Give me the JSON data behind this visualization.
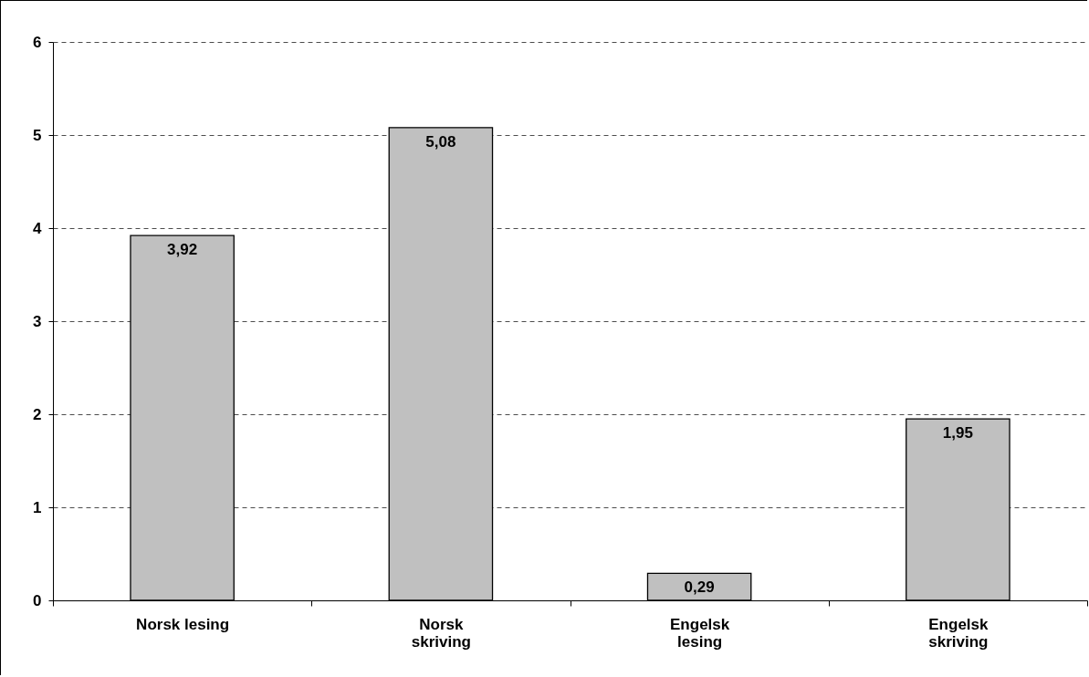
{
  "chart_data": {
    "type": "bar",
    "categories": [
      "Norsk lesing",
      "Norsk skriving",
      "Engelsk lesing",
      "Engelsk skriving"
    ],
    "values": [
      3.92,
      5.08,
      0.29,
      1.95
    ],
    "value_labels": [
      "3,92",
      "5,08",
      "0,29",
      "1,95"
    ],
    "color": "#c0c0c0",
    "ylim": [
      0,
      6
    ],
    "yticks": [
      0,
      1,
      2,
      3,
      4,
      5,
      6
    ],
    "grid": "y",
    "legend": false
  }
}
